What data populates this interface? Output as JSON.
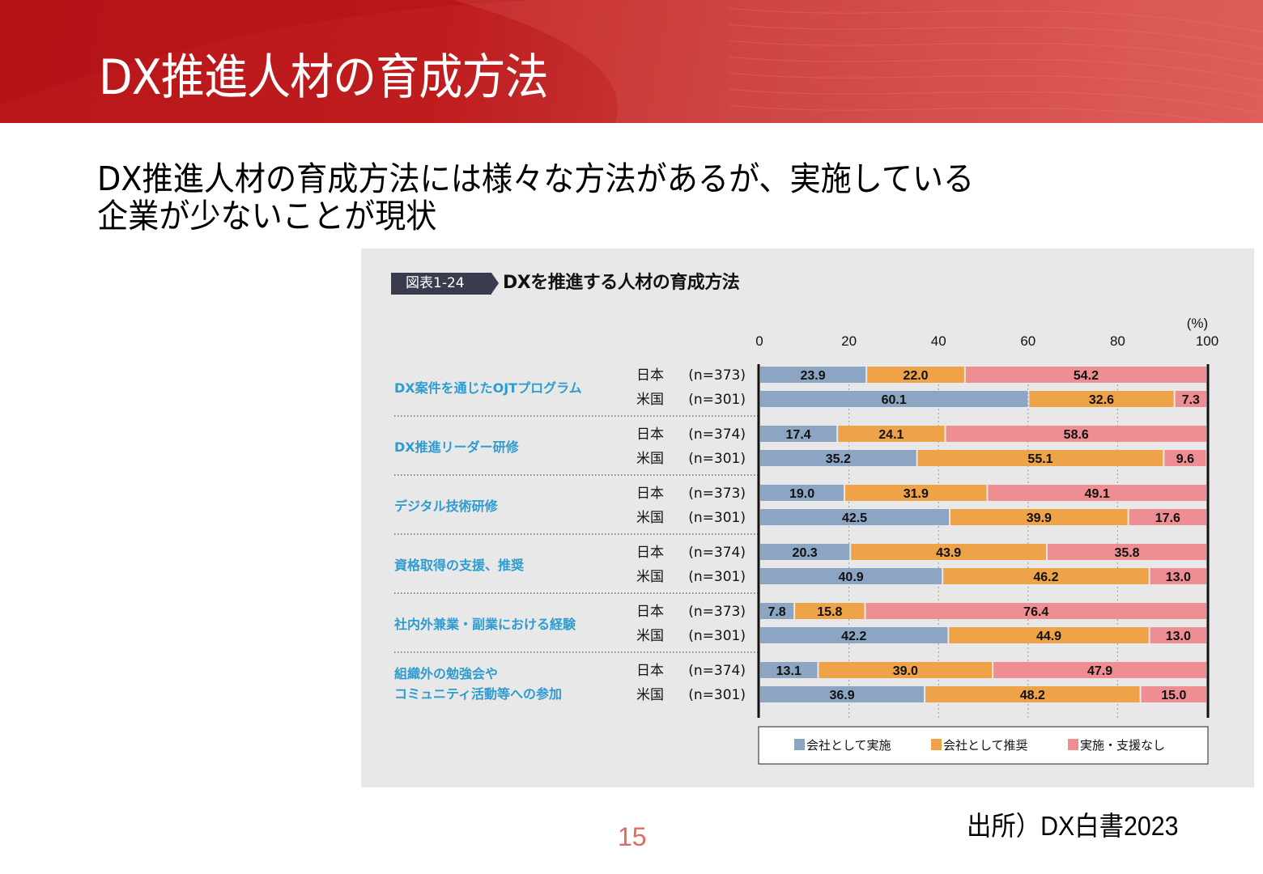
{
  "slide": {
    "title": "DX推進人材の育成方法",
    "lead_line1": "DX推進人材の育成方法には様々な方法があるが、実施している",
    "lead_line2": "企業が少ないことが現状",
    "page_number": "15",
    "source": "出所）DX白書2023"
  },
  "figure": {
    "badge": "図表1-24",
    "title": "DXを推進する人材の育成方法"
  },
  "colors": {
    "banner": "#bf1c1e",
    "implemented": "#8ba5c2",
    "recommended": "#eea349",
    "none": "#ef8e92",
    "category_text": "#2e9ccf",
    "page_number": "#e06b62"
  },
  "chart_data": {
    "type": "bar",
    "orientation": "horizontal",
    "stacked": true,
    "title": "DXを推進する人材の育成方法",
    "unit_label": "(%)",
    "xlim": [
      0,
      100
    ],
    "xticks": [
      0,
      20,
      40,
      60,
      80,
      100
    ],
    "grid": true,
    "legend_position": "bottom",
    "series_names": [
      "会社として実施",
      "会社として推奨",
      "実施・支援なし"
    ],
    "categories": [
      {
        "label": [
          "DX案件を通じたOJTプログラム"
        ],
        "rows": [
          {
            "country": "日本",
            "n": "(n=373)",
            "values": [
              23.9,
              22.0,
              54.2
            ]
          },
          {
            "country": "米国",
            "n": "(n=301)",
            "values": [
              60.1,
              32.6,
              7.3
            ]
          }
        ]
      },
      {
        "label": [
          "DX推進リーダー研修"
        ],
        "rows": [
          {
            "country": "日本",
            "n": "(n=374)",
            "values": [
              17.4,
              24.1,
              58.6
            ]
          },
          {
            "country": "米国",
            "n": "(n=301)",
            "values": [
              35.2,
              55.1,
              9.6
            ]
          }
        ]
      },
      {
        "label": [
          "デジタル技術研修"
        ],
        "rows": [
          {
            "country": "日本",
            "n": "(n=373)",
            "values": [
              19.0,
              31.9,
              49.1
            ]
          },
          {
            "country": "米国",
            "n": "(n=301)",
            "values": [
              42.5,
              39.9,
              17.6
            ]
          }
        ]
      },
      {
        "label": [
          "資格取得の支援、推奨"
        ],
        "rows": [
          {
            "country": "日本",
            "n": "(n=374)",
            "values": [
              20.3,
              43.9,
              35.8
            ]
          },
          {
            "country": "米国",
            "n": "(n=301)",
            "values": [
              40.9,
              46.2,
              13.0
            ]
          }
        ]
      },
      {
        "label": [
          "社内外兼業・副業における経験"
        ],
        "rows": [
          {
            "country": "日本",
            "n": "(n=373)",
            "values": [
              7.8,
              15.8,
              76.4
            ]
          },
          {
            "country": "米国",
            "n": "(n=301)",
            "values": [
              42.2,
              44.9,
              13.0
            ]
          }
        ]
      },
      {
        "label": [
          "組織外の勉強会や",
          "コミュニティ活動等への参加"
        ],
        "rows": [
          {
            "country": "日本",
            "n": "(n=374)",
            "values": [
              13.1,
              39.0,
              47.9
            ]
          },
          {
            "country": "米国",
            "n": "(n=301)",
            "values": [
              36.9,
              48.2,
              15.0
            ]
          }
        ]
      }
    ]
  }
}
